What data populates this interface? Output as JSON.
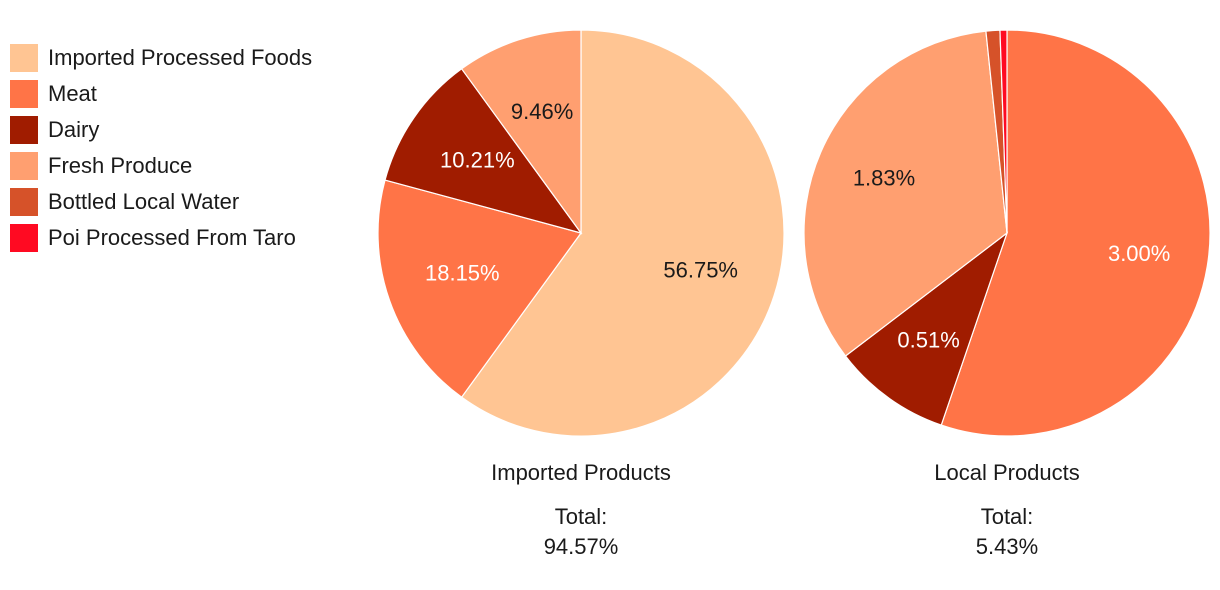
{
  "legend": [
    {
      "label": "Imported Processed Foods",
      "color": "#FFC593"
    },
    {
      "label": "Meat",
      "color": "#FF7447"
    },
    {
      "label": "Dairy",
      "color": "#A01C00"
    },
    {
      "label": "Fresh Produce",
      "color": "#FF9F70"
    },
    {
      "label": "Bottled Local Water",
      "color": "#D65229"
    },
    {
      "label": "Poi Processed From Taro",
      "color": "#FF0A22"
    }
  ],
  "chart_data": [
    {
      "type": "pie",
      "title": "Imported Products",
      "total_label": "Total:",
      "total_value": "94.57%",
      "slices": [
        {
          "category": "Imported Processed Foods",
          "value": 56.75,
          "label": "56.75%",
          "color": "#FFC593",
          "text_color": "#1a1a1a"
        },
        {
          "category": "Meat",
          "value": 18.15,
          "label": "18.15%",
          "color": "#FF7447",
          "text_color": "#ffffff"
        },
        {
          "category": "Dairy",
          "value": 10.21,
          "label": "10.21%",
          "color": "#A01C00",
          "text_color": "#ffffff"
        },
        {
          "category": "Fresh Produce",
          "value": 9.46,
          "label": "9.46%",
          "color": "#FF9F70",
          "text_color": "#1a1a1a"
        }
      ]
    },
    {
      "type": "pie",
      "title": "Local Products",
      "total_label": "Total:",
      "total_value": "5.43%",
      "slices": [
        {
          "category": "Meat",
          "value": 3.0,
          "label": "3.00%",
          "color": "#FF7447",
          "text_color": "#ffffff"
        },
        {
          "category": "Dairy",
          "value": 0.51,
          "label": "0.51%",
          "color": "#A01C00",
          "text_color": "#ffffff"
        },
        {
          "category": "Fresh Produce",
          "value": 1.83,
          "label": "1.83%",
          "color": "#FF9F70",
          "text_color": "#1a1a1a"
        },
        {
          "category": "Bottled Local Water",
          "value": 0.06,
          "label": "",
          "color": "#D65229",
          "text_color": "#ffffff"
        },
        {
          "category": "Poi Processed From Taro",
          "value": 0.03,
          "label": "",
          "color": "#FF0A22",
          "text_color": "#ffffff"
        }
      ]
    }
  ]
}
